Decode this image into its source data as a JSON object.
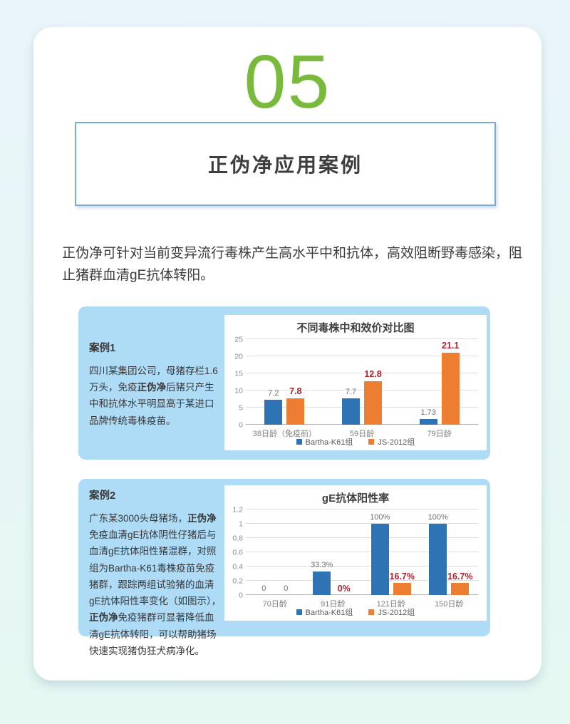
{
  "page": {
    "section_number": "05",
    "section_title": "正伪净应用案例",
    "intro_text": "正伪净可针对当前变异流行毒株产生高水平中和抗体，高效阻断野毒感染，阻止猪群血清gE抗体转阳。"
  },
  "cases": [
    {
      "label": "案例1",
      "body_runs": [
        {
          "t": "四川某集团公司，母猪存栏1.6万头，免疫",
          "b": false
        },
        {
          "t": "正伪净",
          "b": true
        },
        {
          "t": "后猪只产生中和抗体水平明显高于某进口品牌传统毒株疫苗。",
          "b": false
        }
      ]
    },
    {
      "label": "案例2",
      "body_runs": [
        {
          "t": "广东某3000头母猪场，",
          "b": false
        },
        {
          "t": "正伪净",
          "b": true
        },
        {
          "t": "免疫血清gE抗体阴性仔猪后与血清gE抗体阳性猪混群，对照组为Bartha-K61毒株疫苗免疫猪群，跟踪两组试验猪的血清gE抗体阳性率变化（如图示），",
          "b": false
        },
        {
          "t": "正伪净",
          "b": true
        },
        {
          "t": "免疫猪群可显著降低血清gE抗体转阳，可以帮助猪场快速实现猪伪狂犬病净化。",
          "b": false
        }
      ]
    }
  ],
  "chart_data": [
    {
      "type": "bar",
      "title": "不同毒株中和效价对比图",
      "categories": [
        "38日龄（免疫前）",
        "59日龄",
        "79日龄"
      ],
      "series": [
        {
          "name": "Bartha-K61组",
          "color": "#2e74b5",
          "values": [
            7.2,
            7.7,
            1.73
          ],
          "labels": [
            "7.2",
            "7.7",
            "1.73"
          ],
          "label_styles": [
            "gray",
            "gray",
            "gray"
          ]
        },
        {
          "name": "JS-2012组",
          "color": "#ed7d31",
          "values": [
            7.8,
            12.8,
            21.1
          ],
          "labels": [
            "7.8",
            "12.8",
            "21.1"
          ],
          "label_styles": [
            "red",
            "red",
            "red"
          ]
        }
      ],
      "xlabel": "",
      "ylabel": "",
      "ylim": [
        0,
        25
      ],
      "yticks": [
        0,
        5,
        10,
        15,
        20,
        25
      ],
      "grid": true,
      "legend_position": "bottom"
    },
    {
      "type": "bar",
      "title": "gE抗体阳性率",
      "categories": [
        "70日龄",
        "91日龄",
        "121日龄",
        "150日龄"
      ],
      "series": [
        {
          "name": "Bartha-K61组",
          "color": "#2e74b5",
          "values": [
            0,
            0.333,
            1,
            1
          ],
          "labels": [
            "0",
            "33.3%",
            "100%",
            "100%"
          ],
          "label_styles": [
            "gray",
            "gray",
            "gray",
            "gray"
          ]
        },
        {
          "name": "JS-2012组",
          "color": "#ed7d31",
          "values": [
            0,
            0,
            0.167,
            0.167
          ],
          "labels": [
            "0",
            "0%",
            "16.7%",
            "16.7%"
          ],
          "label_styles": [
            "gray",
            "red",
            "red",
            "red"
          ]
        }
      ],
      "xlabel": "",
      "ylabel": "",
      "ylim": [
        0,
        1.2
      ],
      "yticks": [
        0,
        0.2,
        0.4,
        0.6,
        0.8,
        1,
        1.2
      ],
      "grid": true,
      "legend_position": "bottom"
    }
  ],
  "colors": {
    "accent_green": "#79b93c",
    "title_border_blue": "#7aa9d6",
    "panel_blue": "#aedcf7",
    "bar_blue": "#2e74b5",
    "bar_orange": "#ed7d31",
    "value_label_red": "#b0232e"
  }
}
